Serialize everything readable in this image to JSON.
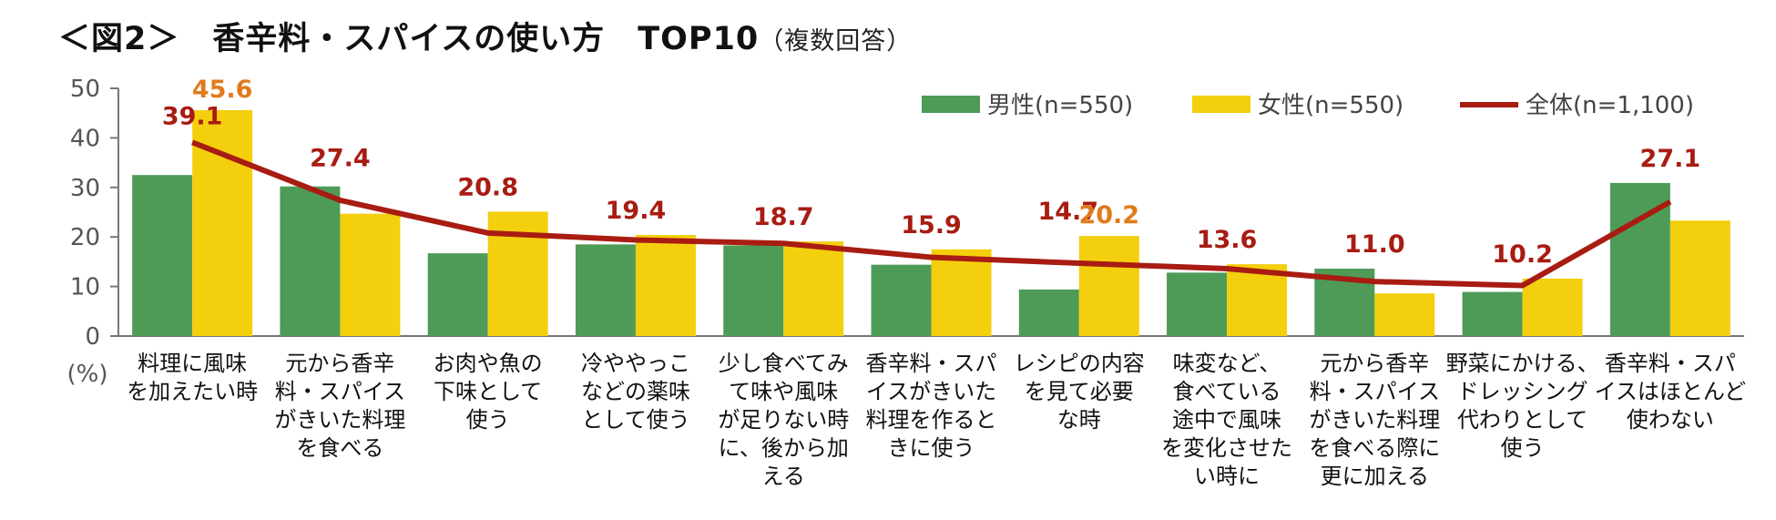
{
  "title": {
    "main": "＜図2＞　香辛料・スパイスの使い方　TOP10",
    "sub": "（複数回答）"
  },
  "colors": {
    "male": "#4e9b58",
    "female": "#f4cf0e",
    "total": "#a81c12",
    "female_label": "#e07b1c",
    "axis": "#777777"
  },
  "chart_data": {
    "type": "bar",
    "title": "＜図2＞　香辛料・スパイスの使い方　TOP10（複数回答）",
    "ylabel": "(%)",
    "ylim": [
      0,
      50
    ],
    "yticks": [
      "0",
      "10",
      "20",
      "30",
      "40",
      "50"
    ],
    "categories": [
      [
        "料理に風味",
        "を加えたい時"
      ],
      [
        "元から香辛",
        "料・スパイス",
        "がきいた料理",
        "を食べる"
      ],
      [
        "お肉や魚の",
        "下味として",
        "使う"
      ],
      [
        "冷ややっこ",
        "などの薬味",
        "として使う"
      ],
      [
        "少し食べてみ",
        "て味や風味",
        "が足りない時",
        "に、後から加",
        "える"
      ],
      [
        "香辛料・スパ",
        "イスがきいた",
        "料理を作ると",
        "きに使う"
      ],
      [
        "レシピの内容",
        "を見て必要",
        "な時"
      ],
      [
        "味変など、",
        "食べている",
        "途中で風味",
        "を変化させた",
        "い時に"
      ],
      [
        "元から香辛",
        "料・スパイス",
        "がきいた料理",
        "を食べる際に",
        "更に加える"
      ],
      [
        "野菜にかける、",
        "ドレッシング",
        "代わりとして",
        "使う"
      ],
      [
        "香辛料・スパ",
        "イスはほとんど",
        "使わない"
      ]
    ],
    "series": [
      {
        "name": "男性(n=550)",
        "type": "bar",
        "values": [
          32.5,
          30.2,
          16.7,
          18.5,
          18.3,
          14.4,
          9.4,
          12.8,
          13.6,
          8.9,
          30.9
        ]
      },
      {
        "name": "女性(n=550)",
        "type": "bar",
        "values": [
          45.6,
          24.7,
          25.1,
          20.4,
          19.1,
          17.5,
          20.2,
          14.5,
          8.6,
          11.6,
          23.3
        ]
      },
      {
        "name": "全体(n=1,100)",
        "type": "line",
        "values": [
          39.1,
          27.4,
          20.8,
          19.4,
          18.7,
          15.9,
          14.7,
          13.6,
          11.0,
          10.2,
          27.1
        ]
      }
    ],
    "data_labels": {
      "total": [
        "39.1",
        "27.4",
        "20.8",
        "19.4",
        "18.7",
        "15.9",
        "14.7",
        "13.6",
        "11.0",
        "10.2",
        "27.1"
      ],
      "female_highlight": [
        {
          "index": 0,
          "text": "45.6"
        },
        {
          "index": 6,
          "text": "20.2"
        }
      ]
    },
    "legend": {
      "position": "top-right"
    }
  }
}
